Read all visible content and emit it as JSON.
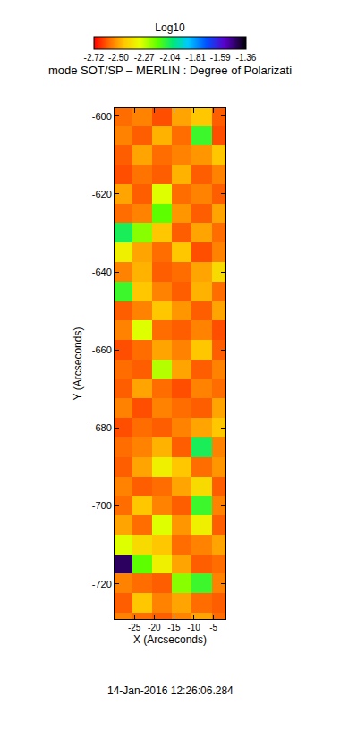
{
  "chart_data": {
    "type": "heatmap",
    "title": "mode SOT/SP – MERLIN : Degree of Polarizati",
    "x_label": "X (Arcseconds)",
    "y_label": "Y (Arcseconds)",
    "annotations": [
      "14-Jan-2016 12:26:06.284"
    ],
    "x": [
      -28,
      -23,
      -18,
      -13,
      -8,
      -3
    ],
    "y": [
      -600,
      -605,
      -610,
      -615,
      -620,
      -625,
      -630,
      -635,
      -640,
      -645,
      -650,
      -655,
      -660,
      -665,
      -670,
      -675,
      -680,
      -685,
      -690,
      -695,
      -700,
      -705,
      -710,
      -715,
      -720,
      -725,
      -730
    ],
    "z": [
      [
        -2.58,
        -2.55,
        -2.62,
        -2.5,
        -2.45,
        -2.6
      ],
      [
        -2.55,
        -2.6,
        -2.48,
        -2.58,
        -2.1,
        -2.62
      ],
      [
        -2.6,
        -2.5,
        -2.58,
        -2.55,
        -2.52,
        -2.45
      ],
      [
        -2.62,
        -2.57,
        -2.6,
        -2.48,
        -2.6,
        -2.55
      ],
      [
        -2.5,
        -2.6,
        -2.3,
        -2.58,
        -2.55,
        -2.6
      ],
      [
        -2.58,
        -2.55,
        -2.15,
        -2.52,
        -2.6,
        -2.5
      ],
      [
        -2.05,
        -2.2,
        -2.45,
        -2.6,
        -2.5,
        -2.58
      ],
      [
        -2.35,
        -2.5,
        -2.58,
        -2.45,
        -2.62,
        -2.55
      ],
      [
        -2.55,
        -2.48,
        -2.6,
        -2.58,
        -2.5,
        -2.4
      ],
      [
        -2.1,
        -2.45,
        -2.55,
        -2.6,
        -2.48,
        -2.58
      ],
      [
        -2.6,
        -2.55,
        -2.45,
        -2.52,
        -2.6,
        -2.5
      ],
      [
        -2.55,
        -2.3,
        -2.58,
        -2.6,
        -2.55,
        -2.62
      ],
      [
        -2.62,
        -2.58,
        -2.5,
        -2.55,
        -2.45,
        -2.6
      ],
      [
        -2.58,
        -2.6,
        -2.25,
        -2.5,
        -2.6,
        -2.55
      ],
      [
        -2.6,
        -2.5,
        -2.58,
        -2.62,
        -2.55,
        -2.58
      ],
      [
        -2.55,
        -2.62,
        -2.55,
        -2.58,
        -2.6,
        -2.5
      ],
      [
        -2.62,
        -2.58,
        -2.6,
        -2.55,
        -2.5,
        -2.45
      ],
      [
        -2.58,
        -2.55,
        -2.48,
        -2.6,
        -2.05,
        -2.55
      ],
      [
        -2.6,
        -2.5,
        -2.35,
        -2.45,
        -2.58,
        -2.52
      ],
      [
        -2.55,
        -2.6,
        -2.58,
        -2.5,
        -2.4,
        -2.6
      ],
      [
        -2.58,
        -2.45,
        -2.55,
        -2.6,
        -2.1,
        -2.55
      ],
      [
        -2.5,
        -2.58,
        -2.3,
        -2.52,
        -2.35,
        -2.6
      ],
      [
        -2.3,
        -2.4,
        -2.45,
        -2.58,
        -2.55,
        -2.5
      ],
      [
        -1.45,
        -2.15,
        -2.35,
        -2.5,
        -2.6,
        -2.58
      ],
      [
        -2.55,
        -2.58,
        -2.6,
        -2.2,
        -2.1,
        -2.55
      ],
      [
        -2.6,
        -2.45,
        -2.55,
        -2.5,
        -2.58,
        -2.6
      ],
      [
        -2.55,
        -2.58,
        -2.6,
        -2.55,
        -2.5,
        -2.58
      ]
    ],
    "xlim": [
      -30,
      -2
    ],
    "ylim": [
      -729,
      -598
    ],
    "xticks": [
      -25,
      -20,
      -15,
      -10,
      -5
    ],
    "yticks": [
      -720,
      -700,
      -680,
      -660,
      -640,
      -620,
      -600
    ],
    "colorbar": {
      "title": "Log10",
      "range": [
        -2.72,
        -1.36
      ],
      "ticks": [
        -2.72,
        {
          "value": -2.5,
          "label": "-2.50"
        },
        -2.27,
        -2.04,
        -1.81,
        -1.59,
        -1.36
      ]
    },
    "grid": false
  }
}
